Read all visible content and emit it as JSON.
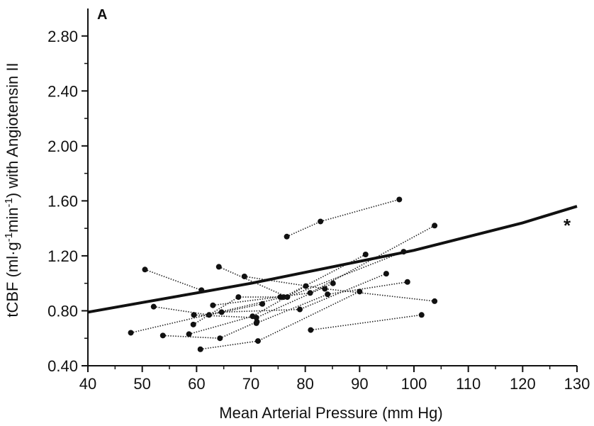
{
  "chart_data": {
    "type": "scatter",
    "panel_label": "A",
    "xlabel": "Mean Arterial Pressure (mm Hg)",
    "ylabel_parts": [
      "tCBF (ml·g",
      "-1",
      "min",
      "-1",
      ") with Angiotensin II"
    ],
    "xlim": [
      40,
      130
    ],
    "ylim": [
      0.4,
      3.0
    ],
    "x_ticks": [
      40,
      50,
      60,
      70,
      80,
      90,
      100,
      110,
      120,
      130
    ],
    "x_tick_labels": [
      "40",
      "50",
      "60",
      "70",
      "80",
      "90",
      "100",
      "110",
      "120",
      "130"
    ],
    "y_ticks": [
      0.4,
      0.8,
      1.2,
      1.6,
      2.0,
      2.4,
      2.8
    ],
    "y_tick_labels": [
      "0.40",
      "0.80",
      "1.20",
      "1.60",
      "2.00",
      "2.40",
      "2.80"
    ],
    "regression_curve": {
      "x": [
        40,
        50,
        60,
        70,
        80,
        90,
        100,
        110,
        120,
        130
      ],
      "y": [
        0.79,
        0.86,
        0.93,
        1.0,
        1.08,
        1.16,
        1.24,
        1.34,
        1.44,
        1.56
      ]
    },
    "annotation": "*",
    "series": [
      {
        "x": [
          76.6,
          82.8,
          97.3
        ],
        "y": [
          1.34,
          1.45,
          1.61
        ]
      },
      {
        "x": [
          63.0,
          80.9,
          103.8
        ],
        "y": [
          0.84,
          0.93,
          1.42
        ]
      },
      {
        "x": [
          47.9,
          76.0,
          91.1
        ],
        "y": [
          0.64,
          0.9,
          1.21
        ]
      },
      {
        "x": [
          50.5,
          60.9
        ],
        "y": [
          1.1,
          0.95
        ]
      },
      {
        "x": [
          64.1,
          76.7,
          98.1
        ],
        "y": [
          1.12,
          0.9,
          1.23
        ]
      },
      {
        "x": [
          68.8,
          83.6,
          103.8
        ],
        "y": [
          1.05,
          0.96,
          0.87
        ]
      },
      {
        "x": [
          52.1,
          62.3,
          72.1
        ],
        "y": [
          0.83,
          0.77,
          0.85
        ]
      },
      {
        "x": [
          59.4,
          67.7,
          75.4
        ],
        "y": [
          0.7,
          0.9,
          0.9
        ]
      },
      {
        "x": [
          59.5,
          71.0,
          85.1
        ],
        "y": [
          0.77,
          0.75,
          1.0
        ]
      },
      {
        "x": [
          58.6,
          70.3,
          80.1
        ],
        "y": [
          0.63,
          0.76,
          0.98
        ]
      },
      {
        "x": [
          64.6,
          79.0,
          94.9
        ],
        "y": [
          0.79,
          0.81,
          1.07
        ]
      },
      {
        "x": [
          53.8,
          64.3,
          71.1
        ],
        "y": [
          0.62,
          0.6,
          0.72
        ]
      },
      {
        "x": [
          71.0,
          84.1,
          98.8
        ],
        "y": [
          0.71,
          0.92,
          1.01
        ]
      },
      {
        "x": [
          60.7,
          71.3,
          90.0
        ],
        "y": [
          0.52,
          0.58,
          0.94
        ]
      },
      {
        "x": [
          81.0,
          101.4
        ],
        "y": [
          0.66,
          0.77
        ]
      }
    ]
  }
}
